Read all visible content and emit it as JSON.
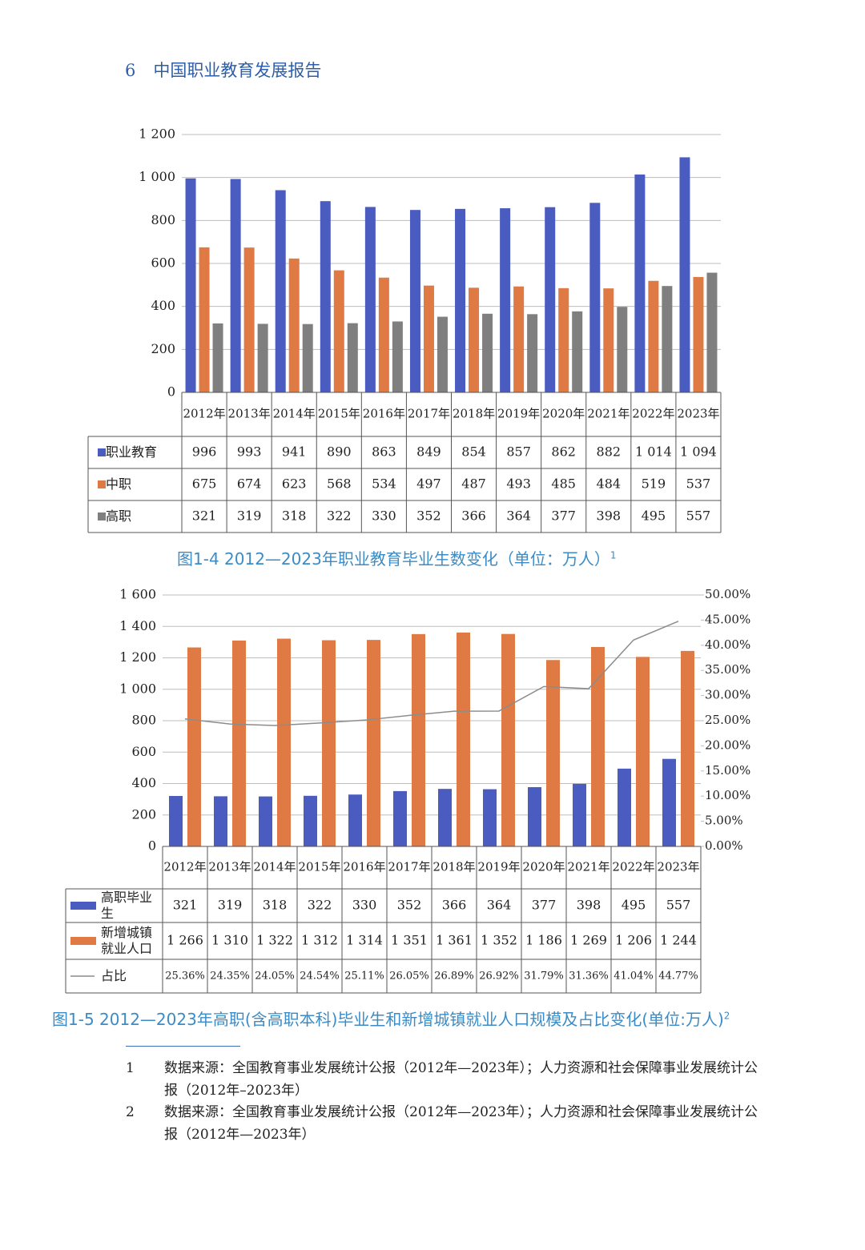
{
  "header": {
    "page_number": "6",
    "title": "中国职业教育发展报告"
  },
  "chart_data": [
    {
      "type": "bar",
      "title": "图1-4 2012—2023年职业教育毕业生数变化（单位：万人）",
      "title_note": "1",
      "categories": [
        "2012年",
        "2013年",
        "2014年",
        "2015年",
        "2016年",
        "2017年",
        "2018年",
        "2019年",
        "2020年",
        "2021年",
        "2022年",
        "2023年"
      ],
      "series": [
        {
          "name": "职业教育",
          "color": "#4a5cc0",
          "values": [
            996,
            993,
            941,
            890,
            863,
            849,
            854,
            857,
            862,
            882,
            1014,
            1094
          ],
          "value_labels": [
            "996",
            "993",
            "941",
            "890",
            "863",
            "849",
            "854",
            "857",
            "862",
            "882",
            "1 014",
            "1 094"
          ]
        },
        {
          "name": "中职",
          "color": "#e07a44",
          "values": [
            675,
            674,
            623,
            568,
            534,
            497,
            487,
            493,
            485,
            484,
            519,
            537
          ]
        },
        {
          "name": "高职",
          "color": "#7f7f7f",
          "values": [
            321,
            319,
            318,
            322,
            330,
            352,
            366,
            364,
            377,
            398,
            495,
            557
          ]
        }
      ],
      "ylim": [
        0,
        1200
      ],
      "yticks": [
        0,
        200,
        400,
        600,
        800,
        {
          "value": 1000,
          "label": "1 000"
        },
        {
          "value": 1200,
          "label": "1 200"
        }
      ],
      "grid": true
    },
    {
      "type": "bar",
      "title": "图1-5 2012—2023年高职(含高职本科)毕业生和新增城镇就业人口规模及占比变化(单位:万人)",
      "title_note": "2",
      "categories": [
        "2012年",
        "2013年",
        "2014年",
        "2015年",
        "2016年",
        "2017年",
        "2018年",
        "2019年",
        "2020年",
        "2021年",
        "2022年",
        "2023年"
      ],
      "series": [
        {
          "name": "高职毕业生",
          "color": "#4a5cc0",
          "values": [
            321,
            319,
            318,
            322,
            330,
            352,
            366,
            364,
            377,
            398,
            495,
            557
          ]
        },
        {
          "name": "新增城镇就业人口",
          "color": "#e07a44",
          "values": [
            1266,
            1310,
            1322,
            1312,
            1314,
            1351,
            1361,
            1352,
            1186,
            1269,
            1206,
            1244
          ],
          "value_labels": [
            "1 266",
            "1 310",
            "1 322",
            "1 312",
            "1 314",
            "1 351",
            "1 361",
            "1 352",
            "1 186",
            "1 269",
            "1 206",
            "1 244"
          ]
        },
        {
          "name": "占比",
          "type": "line",
          "axis": "y2",
          "color": "#8c8c8c",
          "values": [
            25.36,
            24.35,
            24.05,
            24.54,
            25.11,
            26.05,
            26.89,
            26.92,
            31.79,
            31.36,
            41.04,
            44.77
          ],
          "value_labels": [
            "25.36%",
            "24.35%",
            "24.05%",
            "24.54%",
            "25.11%",
            "26.05%",
            "26.89%",
            "26.92%",
            "31.79%",
            "31.36%",
            "41.04%",
            "44.77%"
          ]
        }
      ],
      "ylim": [
        0,
        1600
      ],
      "yticks": [
        0,
        200,
        400,
        600,
        800,
        {
          "value": 1000,
          "label": "1 000"
        },
        {
          "value": 1200,
          "label": "1 200"
        },
        {
          "value": 1400,
          "label": "1 400"
        },
        {
          "value": 1600,
          "label": "1 600"
        }
      ],
      "y2lim": [
        0,
        50
      ],
      "y2ticks": [
        {
          "value": 0,
          "label": "0.00%"
        },
        {
          "value": 5,
          "label": "5.00%"
        },
        {
          "value": 10,
          "label": "10.00%"
        },
        {
          "value": 15,
          "label": "15.00%"
        },
        {
          "value": 20,
          "label": "20.00%"
        },
        {
          "value": 25,
          "label": "25.00%"
        },
        {
          "value": 30,
          "label": "30.00%"
        },
        {
          "value": 35,
          "label": "35.00%"
        },
        {
          "value": 40,
          "label": "40.00%"
        },
        {
          "value": 45,
          "label": "45.00%"
        },
        {
          "value": 50,
          "label": "50.00%"
        }
      ],
      "grid": true
    }
  ],
  "footnotes": [
    {
      "number": "1",
      "text": "数据来源：全国教育事业发展统计公报（2012年—2023年）；人力资源和社会保障事业发展统计公报（2012年–2023年）"
    },
    {
      "number": "2",
      "text": "数据来源：全国教育事业发展统计公报（2012年—2023年）；人力资源和社会保障事业发展统计公报（2012年—2023年）"
    }
  ]
}
